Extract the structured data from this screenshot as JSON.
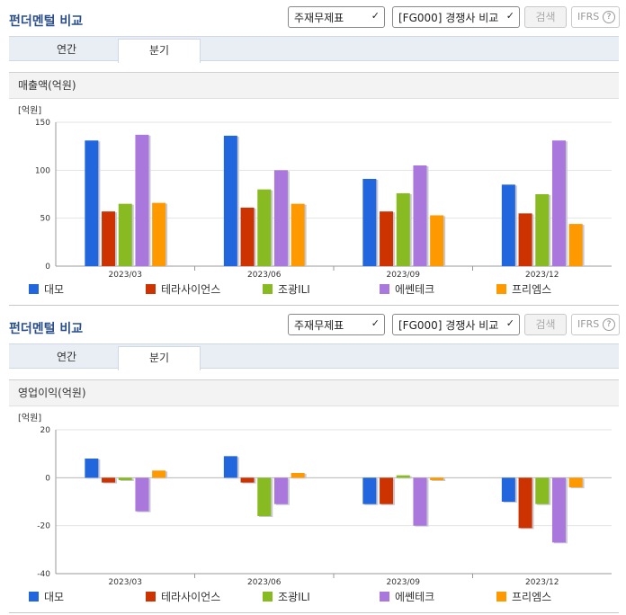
{
  "sections": [
    {
      "title": "펀더멘털 비교",
      "select_statement": "주재무제표",
      "select_compare": "[FG000] 경쟁사 비교",
      "search_label": "검색",
      "ifrs_label": "IFRS",
      "help_glyph": "?",
      "tabs": [
        {
          "label": "연간",
          "active": false
        },
        {
          "label": "분기",
          "active": true
        }
      ],
      "subheading": "매출액(억원)"
    },
    {
      "title": "펀더멘털 비교",
      "select_statement": "주재무제표",
      "select_compare": "[FG000] 경쟁사 비교",
      "search_label": "검색",
      "ifrs_label": "IFRS",
      "help_glyph": "?",
      "tabs": [
        {
          "label": "연간",
          "active": false
        },
        {
          "label": "분기",
          "active": true
        }
      ],
      "subheading": "영업이익(억원)"
    }
  ],
  "chart_data": [
    {
      "type": "bar",
      "unit_label": "[억원]",
      "categories": [
        "2023/03",
        "2023/06",
        "2023/09",
        "2023/12"
      ],
      "yticks": [
        0,
        50,
        100,
        150
      ],
      "ylim": [
        0,
        150
      ],
      "legend_placement": "bottom",
      "series": [
        {
          "name": "대모",
          "color": "#2266dd",
          "values": [
            131,
            136,
            91,
            85
          ]
        },
        {
          "name": "테라사이언스",
          "color": "#cc3300",
          "values": [
            57,
            61,
            57,
            55
          ]
        },
        {
          "name": "조광ILI",
          "color": "#88bb22",
          "values": [
            65,
            80,
            76,
            75
          ]
        },
        {
          "name": "에쎈테크",
          "color": "#aa77dd",
          "values": [
            137,
            100,
            105,
            131
          ]
        },
        {
          "name": "프리엠스",
          "color": "#ff9900",
          "values": [
            66,
            65,
            53,
            44
          ]
        }
      ]
    },
    {
      "type": "bar",
      "unit_label": "[억원]",
      "categories": [
        "2023/03",
        "2023/06",
        "2023/09",
        "2023/12"
      ],
      "yticks": [
        -40,
        -20,
        0,
        20
      ],
      "ylim": [
        -40,
        20
      ],
      "legend_placement": "bottom",
      "series": [
        {
          "name": "대모",
          "color": "#2266dd",
          "values": [
            8,
            9,
            -11,
            -10
          ]
        },
        {
          "name": "테라사이언스",
          "color": "#cc3300",
          "values": [
            -2,
            -2,
            -11,
            -21
          ]
        },
        {
          "name": "조광ILI",
          "color": "#88bb22",
          "values": [
            -1,
            -16,
            1,
            -11
          ]
        },
        {
          "name": "에쎈테크",
          "color": "#aa77dd",
          "values": [
            -14,
            -11,
            -20,
            -27
          ]
        },
        {
          "name": "프리엠스",
          "color": "#ff9900",
          "values": [
            3,
            2,
            -1,
            -4
          ]
        }
      ]
    }
  ]
}
